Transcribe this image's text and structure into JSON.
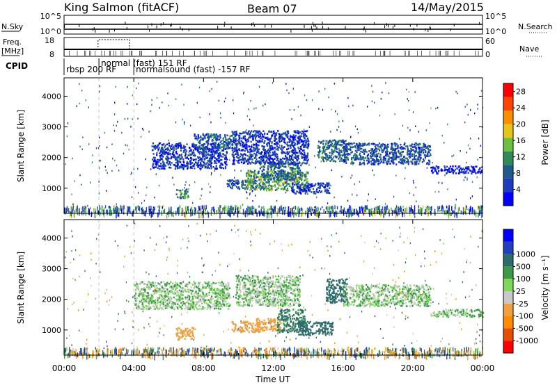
{
  "header": {
    "station": "King Salmon (fitACF)",
    "beam": "Beam 07",
    "date": "14/May/2015"
  },
  "summary_panels": {
    "nsky": {
      "left_label": "N.Sky",
      "right_label": "N.Search",
      "left_ticks": [
        "10^5",
        "10^0"
      ],
      "right_ticks": [
        "10^5",
        "10^0"
      ]
    },
    "freq": {
      "left_label_1": "Freq.",
      "left_label_2": "[MHz]",
      "right_label": "Nave",
      "left_ticks": [
        "18",
        "8"
      ],
      "right_ticks": [
        "60",
        "0"
      ]
    },
    "cpid": {
      "label": "CPID",
      "modes": [
        {
          "text": "rbsp 200 RF",
          "start_hour": 0.0
        },
        {
          "text": "normal (fast) 151 RF",
          "start_hour": 2.0
        },
        {
          "text": "normalsound (fast) -157 RF",
          "start_hour": 4.0
        }
      ]
    }
  },
  "colors": {
    "power_scale": [
      "#0000ff",
      "#1e3cbe",
      "#1e5a8c",
      "#2e8b57",
      "#6fbf3f",
      "#e6c419",
      "#ff8c00",
      "#ff4500",
      "#ff0000"
    ],
    "velocity_scale": [
      "#ff0000",
      "#e84e00",
      "#ff8c00",
      "#f0a040",
      "#c8c8c8",
      "#7ed957",
      "#3a9a4a",
      "#2e6b6b",
      "#2040c0",
      "#0000ff"
    ]
  },
  "chart_data": [
    {
      "type": "heatmap",
      "title": "Power",
      "ylabel": "Slant Range [km]",
      "xlabel": "Time UT",
      "ylim": [
        180,
        4600
      ],
      "xlim_hours": [
        0,
        24
      ],
      "y_ticks": [
        "1000",
        "2000",
        "3000",
        "4000"
      ],
      "x_ticks": [
        "00:00",
        "04:00",
        "08:00",
        "12:00",
        "16:00",
        "20:00",
        "00:00"
      ],
      "colorbar": {
        "label": "Power [dB]",
        "ticks": [
          "4",
          "8",
          "12",
          "16",
          "20",
          "24",
          "28"
        ],
        "range": [
          0,
          30
        ]
      },
      "echo_regions": [
        {
          "t_start": 6.4,
          "t_end": 7.2,
          "r_start": 700,
          "r_end": 1000,
          "value": 12
        },
        {
          "t_start": 5.0,
          "t_end": 9.3,
          "r_start": 1650,
          "r_end": 2500,
          "value": 6
        },
        {
          "t_start": 7.4,
          "t_end": 9.6,
          "r_start": 2300,
          "r_end": 2800,
          "value": 8
        },
        {
          "t_start": 9.3,
          "t_end": 11.0,
          "r_start": 1000,
          "r_end": 1300,
          "value": 8
        },
        {
          "t_start": 10.4,
          "t_end": 14.0,
          "r_start": 950,
          "r_end": 1600,
          "value": 14
        },
        {
          "t_start": 11.2,
          "t_end": 13.6,
          "r_start": 1300,
          "r_end": 1900,
          "value": 10
        },
        {
          "t_start": 13.0,
          "t_end": 15.2,
          "r_start": 850,
          "r_end": 1200,
          "value": 6
        },
        {
          "t_start": 9.6,
          "t_end": 14.0,
          "r_start": 1800,
          "r_end": 2900,
          "value": 6
        },
        {
          "t_start": 14.5,
          "t_end": 16.2,
          "r_start": 1900,
          "r_end": 2600,
          "value": 10
        },
        {
          "t_start": 16.0,
          "t_end": 21.0,
          "r_start": 1800,
          "r_end": 2500,
          "value": 8
        },
        {
          "t_start": 21.0,
          "t_end": 24.0,
          "r_start": 1500,
          "r_end": 1750,
          "value": 4
        }
      ]
    },
    {
      "type": "heatmap",
      "title": "Velocity",
      "ylabel": "Slant Range [km]",
      "xlabel": "Time UT",
      "ylim": [
        180,
        4600
      ],
      "xlim_hours": [
        0,
        24
      ],
      "y_ticks": [
        "1000",
        "2000",
        "3000",
        "4000"
      ],
      "x_ticks": [
        "00:00",
        "04:00",
        "08:00",
        "12:00",
        "16:00",
        "20:00",
        "00:00"
      ],
      "colorbar": {
        "label": "Velocity [m s⁻¹]",
        "ticks": [
          "-1000",
          "-500",
          "-100",
          "-25",
          "25",
          "100",
          "500",
          "1000"
        ]
      },
      "echo_regions": [
        {
          "t_start": 6.4,
          "t_end": 7.4,
          "r_start": 700,
          "r_end": 1100,
          "value": -400
        },
        {
          "t_start": 4.0,
          "t_end": 9.5,
          "r_start": 1700,
          "r_end": 2600,
          "value": 0
        },
        {
          "t_start": 9.6,
          "t_end": 11.2,
          "r_start": 950,
          "r_end": 1300,
          "value": -300
        },
        {
          "t_start": 11.0,
          "t_end": 12.4,
          "r_start": 1000,
          "r_end": 1400,
          "value": -300
        },
        {
          "t_start": 12.2,
          "t_end": 13.8,
          "r_start": 950,
          "r_end": 1700,
          "value": 120
        },
        {
          "t_start": 13.4,
          "t_end": 15.4,
          "r_start": 850,
          "r_end": 1300,
          "value": 250
        },
        {
          "t_start": 15.0,
          "t_end": 16.2,
          "r_start": 1900,
          "r_end": 2700,
          "value": 300
        },
        {
          "t_start": 9.8,
          "t_end": 13.5,
          "r_start": 1800,
          "r_end": 2800,
          "value": 0
        },
        {
          "t_start": 16.0,
          "t_end": 21.0,
          "r_start": 1800,
          "r_end": 2500,
          "value": 0
        },
        {
          "t_start": 21.0,
          "t_end": 24.0,
          "r_start": 1450,
          "r_end": 1700,
          "value": 0
        }
      ]
    }
  ]
}
